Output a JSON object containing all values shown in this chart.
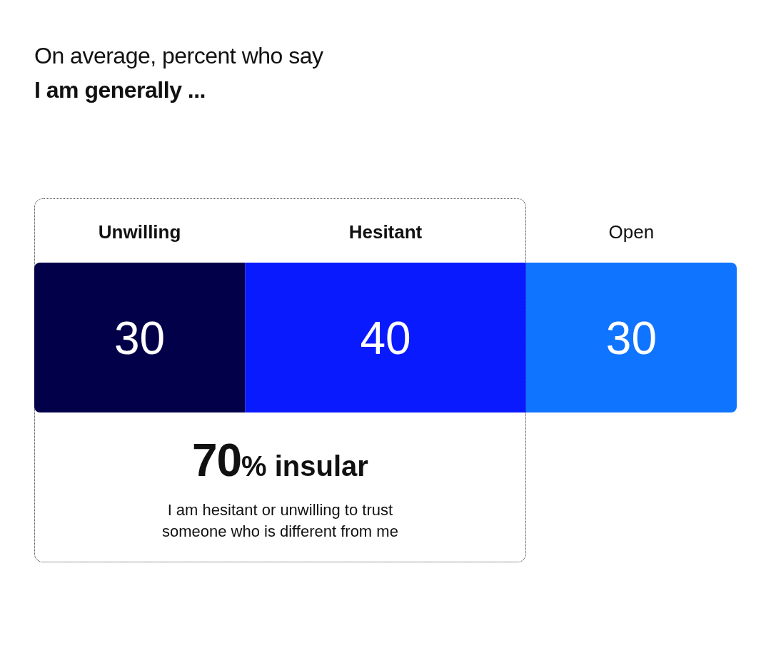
{
  "chart_data": {
    "type": "bar",
    "title": "On average, percent who say",
    "subtitle": "I am generally ...",
    "orientation": "horizontal",
    "stacked": true,
    "categories": [
      null
    ],
    "tick_labels": false,
    "data_labels": true,
    "series": [
      {
        "name": "Unwilling",
        "color": "#03004a",
        "values": [
          30
        ]
      },
      {
        "name": "Hesitant",
        "color": "#0a1aff",
        "values": [
          40
        ]
      },
      {
        "name": "Open",
        "color": "#0f74ff",
        "values": [
          30
        ]
      }
    ],
    "annotations": [
      "70% insular",
      "I am hesitant or unwilling to trust someone who is different from me"
    ]
  }
}
